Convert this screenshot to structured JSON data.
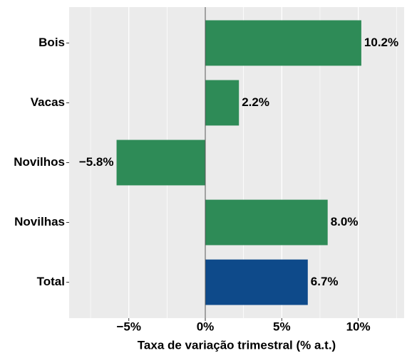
{
  "chart_data": {
    "type": "hbar",
    "categories": [
      "Bois",
      "Vacas",
      "Novilhos",
      "Novilhas",
      "Total"
    ],
    "values": [
      10.2,
      2.2,
      -5.8,
      8.0,
      6.7
    ],
    "value_labels": [
      "10.2%",
      "2.2%",
      "−5.8%",
      "8.0%",
      "6.7%"
    ],
    "colors": [
      "#2e8b57",
      "#2e8b57",
      "#2e8b57",
      "#2e8b57",
      "#0e4a8a"
    ],
    "xlabel": "Taxa de variação trimestral (% a.t.)",
    "xlim": [
      -8.9,
      13.0
    ],
    "xticks": [
      {
        "value": -5,
        "label": "−5%"
      },
      {
        "value": 0,
        "label": "0%"
      },
      {
        "value": 5,
        "label": "5%"
      },
      {
        "value": 10,
        "label": "10%"
      }
    ],
    "grid": true,
    "minor_grid": true
  }
}
